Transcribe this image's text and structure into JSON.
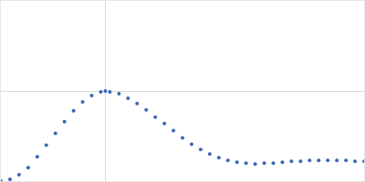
{
  "chart_data": {
    "type": "scatter",
    "color": "#3a66b5",
    "marker": "circle",
    "grid": true,
    "tick_labels": false,
    "x": [
      0,
      0.15,
      0.3,
      0.45,
      0.6,
      0.75,
      0.9,
      1.05,
      1.2,
      1.35,
      1.5,
      1.65,
      1.725,
      1.8,
      1.95,
      2.1,
      2.25,
      2.4,
      2.55,
      2.7,
      2.85,
      3.0,
      3.15,
      3.3,
      3.45,
      3.6,
      3.75,
      3.9,
      4.05,
      4.2,
      4.35,
      4.5,
      4.65,
      4.8,
      4.95,
      5.1,
      5.25,
      5.4,
      5.55,
      5.7,
      5.85,
      6.0
    ],
    "values": [
      0,
      0.022,
      0.077,
      0.165,
      0.297,
      0.44,
      0.583,
      0.726,
      0.858,
      0.968,
      1.045,
      1.089,
      1.1,
      1.089,
      1.067,
      1.012,
      0.946,
      0.869,
      0.781,
      0.704,
      0.616,
      0.528,
      0.451,
      0.385,
      0.33,
      0.286,
      0.253,
      0.231,
      0.22,
      0.209,
      0.22,
      0.22,
      0.231,
      0.242,
      0.242,
      0.253,
      0.253,
      0.253,
      0.253,
      0.253,
      0.242,
      0.242
    ],
    "xlim": [
      0,
      6.0
    ],
    "xticks": [
      1.725
    ],
    "ylim": [
      0,
      2.2
    ],
    "yticks": [
      1.1
    ]
  }
}
